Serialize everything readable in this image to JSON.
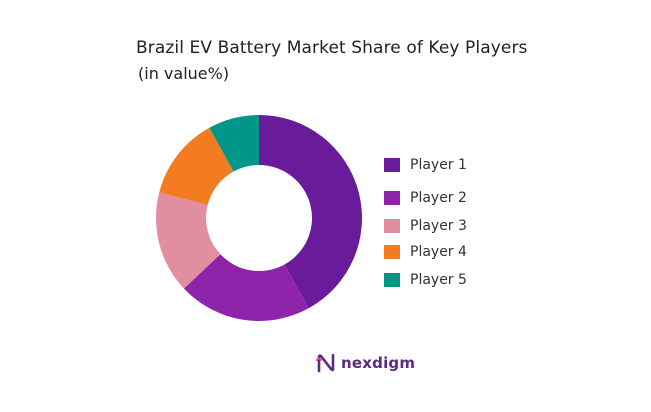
{
  "chart_data": {
    "type": "pie",
    "title": "Brazil EV Battery Market Share of Key Players",
    "subtitle": "(in value%)",
    "donut": true,
    "legend_position": "right",
    "categories": [
      "Player 1",
      "Player 2",
      "Player 3",
      "Player 4",
      "Player 5"
    ],
    "values": [
      42,
      21,
      16,
      13,
      8
    ],
    "colors": [
      "#6a1b9a",
      "#8e24aa",
      "#e08ea0",
      "#f47c20",
      "#009688"
    ]
  },
  "logo": {
    "text": "nexdigm",
    "icon": "nexdigm-n-logo-icon",
    "color": "#5b2a86"
  }
}
